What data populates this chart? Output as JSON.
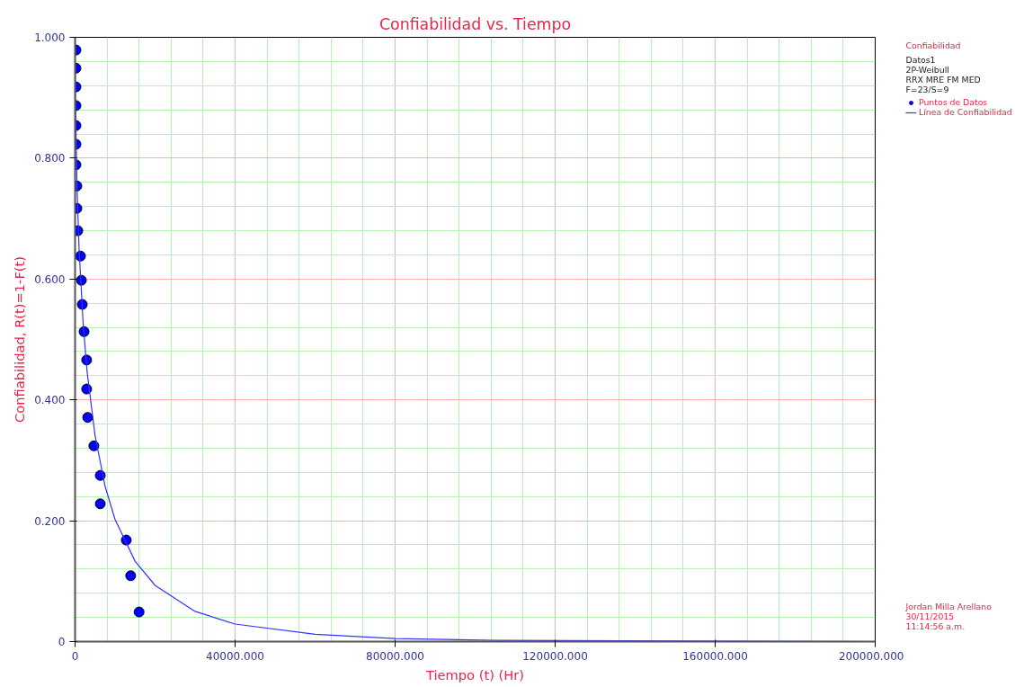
{
  "chart_data": {
    "type": "scatter",
    "title": "Confiabilidad vs. Tiempo",
    "xlabel": "Tiempo (t) (Hr)",
    "ylabel": "Confiabilidad, R(t)=1-F(t)",
    "legend_title": "Confiabilidad",
    "series": [
      {
        "name": "Puntos de Datos",
        "type": "scatter",
        "color": "#0000ff",
        "marker": "circle",
        "x": [
          225,
          225,
          225,
          225,
          225,
          225,
          225,
          450,
          450,
          675,
          1350,
          1575,
          1800,
          2250,
          2900,
          2900,
          3150,
          4700,
          6300,
          6300,
          12800,
          13900,
          16000
        ],
        "values": [
          0.979,
          0.949,
          0.918,
          0.887,
          0.854,
          0.823,
          0.789,
          0.754,
          0.717,
          0.68,
          0.638,
          0.598,
          0.558,
          0.513,
          0.466,
          0.418,
          0.371,
          0.324,
          0.275,
          0.228,
          0.168,
          0.109,
          0.049
        ]
      },
      {
        "name": "Línea de Confiabilidad",
        "type": "line",
        "color": "#3333ff",
        "marker": "none",
        "x": [
          0,
          10,
          50,
          100,
          500,
          1000,
          2000,
          3000,
          5000,
          7500,
          10000,
          15000,
          20000,
          30000,
          40000,
          60000,
          80000,
          105000,
          200000
        ],
        "values": [
          1.0,
          0.969,
          0.925,
          0.89,
          0.748,
          0.65,
          0.528,
          0.447,
          0.341,
          0.257,
          0.202,
          0.133,
          0.093,
          0.05,
          0.029,
          0.012,
          0.005,
          0.002,
          0.0
        ]
      }
    ],
    "xlim": [
      0,
      200000
    ],
    "ylim": [
      0,
      1
    ],
    "xticks": [
      0,
      {
        "value": 8000,
        "label": null
      },
      {
        "value": 16000,
        "label": null
      },
      {
        "value": 24000,
        "label": null
      },
      {
        "value": 32000,
        "label": null
      },
      {
        "value": 40000,
        "label": "40000.000"
      },
      {
        "value": 48000,
        "label": null
      },
      {
        "value": 56000,
        "label": null
      },
      {
        "value": 64000,
        "label": null
      },
      {
        "value": 72000,
        "label": null
      },
      {
        "value": 80000,
        "label": "80000.000"
      },
      {
        "value": 88000,
        "label": null
      },
      {
        "value": 96000,
        "label": null
      },
      {
        "value": 104000,
        "label": null
      },
      {
        "value": 112000,
        "label": null
      },
      {
        "value": 120000,
        "label": "120000.000"
      },
      {
        "value": 128000,
        "label": null
      },
      {
        "value": 136000,
        "label": null
      },
      {
        "value": 144000,
        "label": null
      },
      {
        "value": 152000,
        "label": null
      },
      {
        "value": 160000,
        "label": "160000.000"
      },
      {
        "value": 168000,
        "label": null
      },
      {
        "value": 176000,
        "label": null
      },
      {
        "value": 184000,
        "label": null
      },
      {
        "value": 192000,
        "label": null
      },
      {
        "value": 200000,
        "label": "200000.000"
      }
    ],
    "yticks": [
      0,
      {
        "value": 0.04,
        "label": null
      },
      {
        "value": 0.08,
        "label": null
      },
      {
        "value": 0.12,
        "label": null
      },
      {
        "value": 0.16,
        "label": null
      },
      {
        "value": 0.2,
        "label": "0.200"
      },
      {
        "value": 0.24,
        "label": null
      },
      {
        "value": 0.28,
        "label": null
      },
      {
        "value": 0.32,
        "label": null
      },
      {
        "value": 0.36,
        "label": null
      },
      {
        "value": 0.4,
        "label": "0.400"
      },
      {
        "value": 0.44,
        "label": null
      },
      {
        "value": 0.48,
        "label": null
      },
      {
        "value": 0.52,
        "label": null
      },
      {
        "value": 0.56,
        "label": null
      },
      {
        "value": 0.6,
        "label": "0.600"
      },
      {
        "value": 0.64,
        "label": null
      },
      {
        "value": 0.68,
        "label": null
      },
      {
        "value": 0.72,
        "label": null
      },
      {
        "value": 0.76,
        "label": null
      },
      {
        "value": 0.8,
        "label": "0.800"
      },
      {
        "value": 0.84,
        "label": null
      },
      {
        "value": 0.88,
        "label": null
      },
      {
        "value": 0.92,
        "label": null
      },
      {
        "value": 0.96,
        "label": null
      },
      {
        "value": 1.0,
        "label": "1.000"
      }
    ],
    "grid": true,
    "legend": "right",
    "annotations": [
      "Datos1",
      "2P-Weibull",
      "RRX MRE FM MED",
      "F=23/S=9",
      "Jordan Milla Arellano",
      "30/11/2015",
      "11:14:56 a.m."
    ]
  }
}
